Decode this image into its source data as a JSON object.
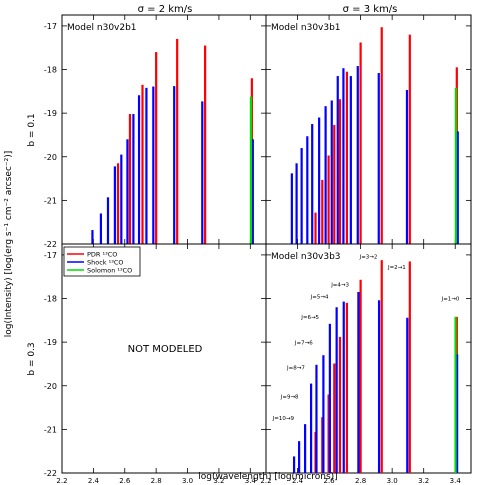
{
  "figure": {
    "column_titles": [
      "σ = 2 km/s",
      "σ = 3 km/s"
    ],
    "row_titles": [
      "b = 0.1",
      "b = 0.3"
    ],
    "ylabel": "log(Intensity) [log(erg s⁻¹ cm⁻² arcsec⁻²)]",
    "xlabel": "log(wavelength) [log(microns)]",
    "not_modeled": "NOT MODELED"
  },
  "legend": [
    {
      "label": "PDR ¹³CO",
      "color": "#ff0000"
    },
    {
      "label": "Shock ¹³CO",
      "color": "#0000ff"
    },
    {
      "label": "Solomon ¹³CO",
      "color": "#00dd00"
    }
  ],
  "chart_data": [
    {
      "type": "bar",
      "title": "Model n30v2b1",
      "panel": "top-left",
      "xlim": [
        2.2,
        3.5
      ],
      "ylim": [
        -22,
        -16.75
      ],
      "xticks": [
        "2.2",
        "2.4",
        "2.6",
        "2.8",
        "3.0",
        "3.2",
        "3.4"
      ],
      "yticks": [
        "-22",
        "-21",
        "-20",
        "-19",
        "-18",
        "-17"
      ],
      "series": [
        {
          "name": "PDR ¹³CO",
          "color": "#ff0000",
          "x": [
            2.557,
            2.633,
            2.713,
            2.8,
            2.934,
            3.112,
            3.41
          ],
          "values": [
            -20.15,
            -19.02,
            -18.35,
            -17.6,
            -17.3,
            -17.45,
            -18.2
          ]
        },
        {
          "name": "Shock ¹³CO",
          "color": "#0000ff",
          "x": [
            2.394,
            2.448,
            2.493,
            2.537,
            2.578,
            2.617,
            2.655,
            2.691,
            2.738,
            2.782,
            2.915,
            3.094,
            3.416
          ],
          "values": [
            -21.68,
            -21.3,
            -20.93,
            -20.22,
            -19.95,
            -19.6,
            -19.02,
            -18.59,
            -18.42,
            -18.39,
            -18.38,
            -18.73,
            -19.6
          ]
        },
        {
          "name": "Solomon ¹³CO",
          "color": "#00dd00",
          "x": [
            3.404
          ],
          "values": [
            -18.62
          ]
        }
      ]
    },
    {
      "type": "bar",
      "title": "Model n30v3b1",
      "panel": "top-right",
      "xlim": [
        2.2,
        3.5
      ],
      "ylim": [
        -22,
        -16.75
      ],
      "xticks": [
        "2.2",
        "2.4",
        "2.6",
        "2.8",
        "3.0",
        "3.2",
        "3.4"
      ],
      "yticks": [
        "-22",
        "-21",
        "-20",
        "-19",
        "-18",
        "-17"
      ],
      "series": [
        {
          "name": "PDR ¹³CO",
          "color": "#ff0000",
          "x": [
            2.514,
            2.557,
            2.597,
            2.633,
            2.669,
            2.713,
            2.8,
            2.934,
            3.112,
            3.41
          ],
          "values": [
            -21.28,
            -20.53,
            -19.97,
            -19.27,
            -18.68,
            -18.05,
            -17.38,
            -17.03,
            -17.2,
            -17.95
          ]
        },
        {
          "name": "Shock ¹³CO",
          "color": "#0000ff",
          "x": [
            2.364,
            2.394,
            2.426,
            2.462,
            2.493,
            2.537,
            2.578,
            2.617,
            2.655,
            2.691,
            2.738,
            2.782,
            2.915,
            3.094,
            3.416
          ],
          "values": [
            -20.38,
            -20.15,
            -19.8,
            -19.53,
            -19.25,
            -19.1,
            -18.84,
            -18.71,
            -18.15,
            -17.97,
            -18.15,
            -17.92,
            -18.08,
            -18.47,
            -19.42
          ]
        },
        {
          "name": "Solomon ¹³CO",
          "color": "#00dd00",
          "x": [
            3.404
          ],
          "values": [
            -18.42
          ]
        }
      ]
    },
    {
      "type": "bar",
      "title": "Model n30v3b3",
      "panel": "bottom-right",
      "xlim": [
        2.2,
        3.5
      ],
      "ylim": [
        -22,
        -16.75
      ],
      "xticks": [
        "2.2",
        "2.4",
        "2.6",
        "2.8",
        "3.0",
        "3.2",
        "3.4"
      ],
      "yticks": [
        "-22",
        "-21",
        "-20",
        "-19",
        "-18",
        "-17"
      ],
      "series": [
        {
          "name": "PDR ¹³CO",
          "color": "#ff0000",
          "x": [
            2.514,
            2.557,
            2.597,
            2.633,
            2.669,
            2.713,
            2.8,
            2.934,
            3.112,
            3.41
          ],
          "values": [
            -21.06,
            -20.72,
            -20.2,
            -19.49,
            -18.88,
            -18.1,
            -17.57,
            -17.12,
            -17.15,
            -18.42
          ]
        },
        {
          "name": "Shock ¹³CO",
          "color": "#0000ff",
          "x": [
            2.378,
            2.41,
            2.448,
            2.486,
            2.52,
            2.564,
            2.605,
            2.648,
            2.693,
            2.786,
            2.917,
            3.096,
            3.412
          ],
          "values": [
            -21.62,
            -21.27,
            -20.88,
            -19.95,
            -19.52,
            -19.3,
            -18.58,
            -18.2,
            -18.07,
            -17.85,
            -18.04,
            -18.44,
            -19.28
          ]
        },
        {
          "name": "Solomon ¹³CO",
          "color": "#00dd00",
          "x": [
            3.402
          ],
          "values": [
            -18.42
          ]
        }
      ],
      "annotations": [
        {
          "text": "J=10→9",
          "x": 2.31,
          "y": -20.78
        },
        {
          "text": "J=9→8",
          "x": 2.35,
          "y": -20.29
        },
        {
          "text": "J=8→7",
          "x": 2.39,
          "y": -19.63
        },
        {
          "text": "J=7→6",
          "x": 2.44,
          "y": -19.05
        },
        {
          "text": "J=6→5",
          "x": 2.48,
          "y": -18.47
        },
        {
          "text": "J=5→4",
          "x": 2.54,
          "y": -18.0
        },
        {
          "text": "J=4→3",
          "x": 2.67,
          "y": -17.72
        },
        {
          "text": "J=3→2",
          "x": 2.85,
          "y": -17.08
        },
        {
          "text": "J=2→1",
          "x": 3.03,
          "y": -17.32
        },
        {
          "text": "J=1→0",
          "x": 3.37,
          "y": -18.04
        }
      ]
    }
  ]
}
